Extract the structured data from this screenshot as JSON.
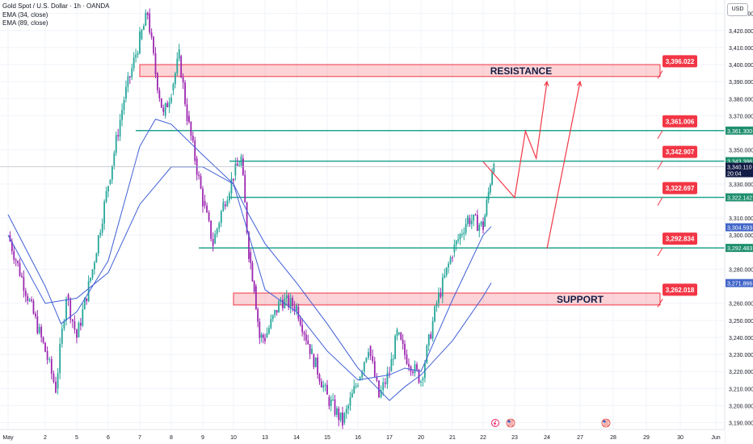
{
  "header": {
    "symbol_title": "Gold Spot / U.S. Dollar · 1h · OANDA",
    "indicators": [
      "EMA (34, close)",
      "EMA (89, close)"
    ],
    "currency_button": "USD"
  },
  "colors": {
    "bull": "#26a69a",
    "bear": "#9c27b0",
    "ema": "#3f5fd6",
    "level_line": "#22a58f",
    "zone_fill": "rgba(242,54,69,0.22)",
    "zone_border": "#f23645",
    "projection": "#f23645",
    "label_red": "#f23645",
    "label_green": "#1e8f6e",
    "label_blue": "#4266c9",
    "label_navy": "#131c45"
  },
  "chart_data": {
    "type": "candlestick",
    "title": "Gold Spot / U.S. Dollar · 1h · OANDA",
    "x_ticks": [
      "May",
      "2",
      "5",
      "6",
      "7",
      "8",
      "9",
      "10",
      "13",
      "14",
      "15",
      "16",
      "17",
      "20",
      "21",
      "22",
      "23",
      "24",
      "27",
      "28",
      "29",
      "30",
      "Jun"
    ],
    "y_ticks": [
      "3,430.000",
      "3,420.000",
      "3,410.000",
      "3,400.000",
      "3,390.000",
      "3,380.000",
      "3,370.000",
      "3,350.000",
      "3,330.000",
      "3,310.000",
      "3,300.000",
      "3,280.000",
      "3,260.000",
      "3,250.000",
      "3,240.000",
      "3,230.000",
      "3,220.000",
      "3,210.000",
      "3,200.000",
      "3,190.000"
    ],
    "ylim": [
      3186,
      3436
    ],
    "price_path": [
      {
        "x": "May 1",
        "y": 3300
      },
      {
        "x": "May 2",
        "y": 3232
      },
      {
        "x": "May 2",
        "y": 3210
      },
      {
        "x": "May 2",
        "y": 3265
      },
      {
        "x": "May 5",
        "y": 3240
      },
      {
        "x": "May 5",
        "y": 3280
      },
      {
        "x": "May 6",
        "y": 3330
      },
      {
        "x": "May 6",
        "y": 3380
      },
      {
        "x": "May 7",
        "y": 3415
      },
      {
        "x": "May 7",
        "y": 3430
      },
      {
        "x": "May 7",
        "y": 3395
      },
      {
        "x": "May 7",
        "y": 3370
      },
      {
        "x": "May 8",
        "y": 3385
      },
      {
        "x": "May 8",
        "y": 3405
      },
      {
        "x": "May 8",
        "y": 3370
      },
      {
        "x": "May 8",
        "y": 3345
      },
      {
        "x": "May 9",
        "y": 3320
      },
      {
        "x": "May 9",
        "y": 3295
      },
      {
        "x": "May 9",
        "y": 3318
      },
      {
        "x": "May 10",
        "y": 3335
      },
      {
        "x": "May 10",
        "y": 3345
      },
      {
        "x": "May 12",
        "y": 3290
      },
      {
        "x": "May 12",
        "y": 3270
      },
      {
        "x": "May 12",
        "y": 3240
      },
      {
        "x": "May 13",
        "y": 3240
      },
      {
        "x": "May 13",
        "y": 3262
      },
      {
        "x": "May 14",
        "y": 3258
      },
      {
        "x": "May 14",
        "y": 3230
      },
      {
        "x": "May 15",
        "y": 3205
      },
      {
        "x": "May 15",
        "y": 3190
      },
      {
        "x": "May 16",
        "y": 3215
      },
      {
        "x": "May 16",
        "y": 3235
      },
      {
        "x": "May 16",
        "y": 3205
      },
      {
        "x": "May 17",
        "y": 3220
      },
      {
        "x": "May 17",
        "y": 3242
      },
      {
        "x": "May 19",
        "y": 3230
      },
      {
        "x": "May 20",
        "y": 3215
      },
      {
        "x": "May 20",
        "y": 3260
      },
      {
        "x": "May 21",
        "y": 3290
      },
      {
        "x": "May 21",
        "y": 3310
      },
      {
        "x": "May 22",
        "y": 3305
      },
      {
        "x": "May 22",
        "y": 3325
      },
      {
        "x": "May 22",
        "y": 3346
      }
    ],
    "ema_34": [
      {
        "x": "May 1",
        "y": 3312
      },
      {
        "x": "May 2",
        "y": 3270
      },
      {
        "x": "May 2",
        "y": 3248
      },
      {
        "x": "May 5",
        "y": 3255
      },
      {
        "x": "May 6",
        "y": 3285
      },
      {
        "x": "May 7",
        "y": 3352
      },
      {
        "x": "May 7",
        "y": 3368
      },
      {
        "x": "May 8",
        "y": 3365
      },
      {
        "x": "May 9",
        "y": 3347
      },
      {
        "x": "May 10",
        "y": 3330
      },
      {
        "x": "May 12",
        "y": 3300
      },
      {
        "x": "May 13",
        "y": 3268
      },
      {
        "x": "May 14",
        "y": 3255
      },
      {
        "x": "May 15",
        "y": 3232
      },
      {
        "x": "May 16",
        "y": 3215
      },
      {
        "x": "May 17",
        "y": 3218
      },
      {
        "x": "May 19",
        "y": 3222
      },
      {
        "x": "May 20",
        "y": 3220
      },
      {
        "x": "May 21",
        "y": 3262
      },
      {
        "x": "May 22",
        "y": 3300
      },
      {
        "x": "May 22",
        "y": 3305
      }
    ],
    "ema_89": [
      {
        "x": "May 1",
        "y": 3300
      },
      {
        "x": "May 2",
        "y": 3260
      },
      {
        "x": "May 5",
        "y": 3263
      },
      {
        "x": "May 6",
        "y": 3278
      },
      {
        "x": "May 7",
        "y": 3318
      },
      {
        "x": "May 8",
        "y": 3340
      },
      {
        "x": "May 9",
        "y": 3340
      },
      {
        "x": "May 10",
        "y": 3330
      },
      {
        "x": "May 12",
        "y": 3312
      },
      {
        "x": "May 13",
        "y": 3295
      },
      {
        "x": "May 14",
        "y": 3272
      },
      {
        "x": "May 15",
        "y": 3248
      },
      {
        "x": "May 16",
        "y": 3222
      },
      {
        "x": "May 17",
        "y": 3203
      },
      {
        "x": "May 19",
        "y": 3211
      },
      {
        "x": "May 20",
        "y": 3218
      },
      {
        "x": "May 21",
        "y": 3238
      },
      {
        "x": "May 22",
        "y": 3264
      },
      {
        "x": "May 22",
        "y": 3272
      }
    ],
    "zones": [
      {
        "label": "RESISTANCE",
        "top": 3400,
        "bottom": 3393,
        "from": "May 7",
        "to": "May 29",
        "price_tag": "3,396.022"
      },
      {
        "label": "SUPPORT",
        "top": 3266,
        "bottom": 3259,
        "from": "May 10",
        "to": "May 29",
        "price_tag": "3,262.018"
      }
    ],
    "levels": [
      {
        "value": 3361.3,
        "from": "May 7",
        "price_tag": "3,361.006",
        "axis_tag": "3,361.300"
      },
      {
        "value": 3343.386,
        "from": "May 10",
        "price_tag": "3,342.907",
        "axis_tag": "3,343.386"
      },
      {
        "value": 3322.142,
        "from": "May 10",
        "price_tag": "3,322.697",
        "axis_tag": "3,322.142"
      },
      {
        "value": 3292.483,
        "from": "May 9",
        "price_tag": "3,292.834",
        "axis_tag": "3,292.483"
      }
    ],
    "projection_paths": [
      {
        "points": [
          {
            "x": "May 22",
            "y": 3343
          },
          {
            "x": "May 23",
            "y": 3322
          },
          {
            "x": "May 23",
            "y": 3361
          },
          {
            "x": "May 23",
            "y": 3345
          },
          {
            "x": "May 24",
            "y": 3390
          }
        ]
      },
      {
        "points": [
          {
            "x": "May 24",
            "y": 3292
          },
          {
            "x": "May 27",
            "y": 3390
          }
        ]
      }
    ],
    "axis_tags": [
      {
        "value": 3340.11,
        "text": "3,340.110",
        "sub": "20:04",
        "style": "navy"
      },
      {
        "value": 3304.593,
        "text": "3,304.593",
        "style": "blue"
      },
      {
        "value": 3271.866,
        "text": "3,271.866",
        "style": "blue"
      }
    ],
    "event_icons": [
      "lightning",
      "us-flag",
      "us-flag"
    ]
  }
}
